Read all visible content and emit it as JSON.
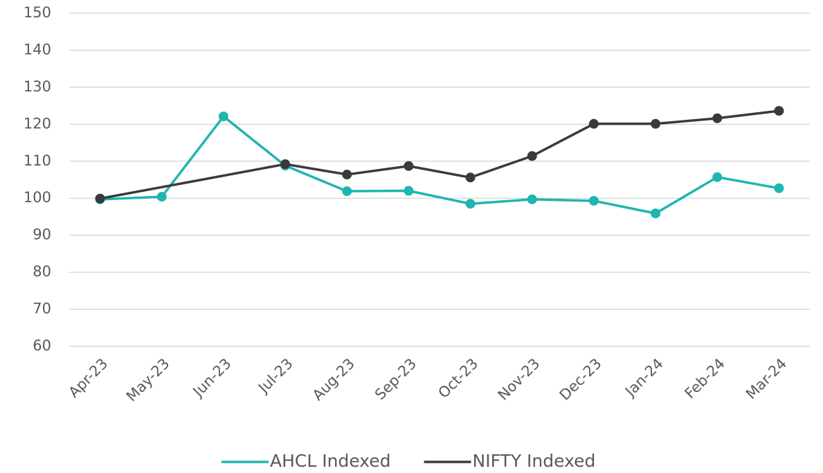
{
  "chart_data": {
    "type": "line",
    "categories": [
      "Apr-23",
      "May-23",
      "Jun-23",
      "Jul-23",
      "Aug-23",
      "Sep-23",
      "Oct-23",
      "Nov-23",
      "Dec-23",
      "Jan-24",
      "Feb-24",
      "Mar-24"
    ],
    "series": [
      {
        "name": "AHCL Indexed",
        "color": "#1fb5b0",
        "values": [
          99.7,
          100.4,
          122.1,
          108.8,
          101.9,
          102.0,
          98.5,
          99.7,
          99.3,
          95.9,
          105.7,
          102.7
        ]
      },
      {
        "name": "NIFTY Indexed",
        "color": "#3a3a3a",
        "values": [
          99.9,
          null,
          null,
          109.2,
          106.4,
          108.7,
          105.6,
          111.4,
          120.1,
          120.1,
          121.6,
          123.6
        ]
      }
    ],
    "span_gaps": true,
    "ylim": [
      60,
      150
    ],
    "yticks": [
      60,
      70,
      80,
      90,
      100,
      110,
      120,
      130,
      140,
      150
    ],
    "grid": true,
    "legend": "bottom"
  }
}
